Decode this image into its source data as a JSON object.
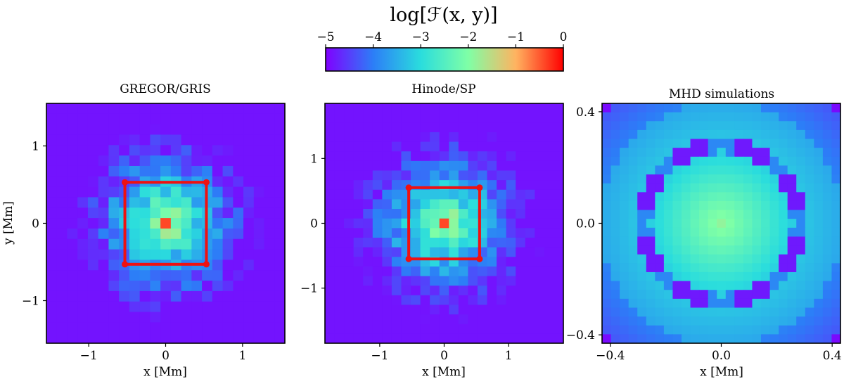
{
  "figure": {
    "colorbar": {
      "label": "log[ℱ(x, y)]",
      "range": [
        -5,
        0
      ],
      "ticks": [
        -5,
        -4,
        -3,
        -2,
        -1,
        0
      ],
      "tick_labels": [
        "−5",
        "−4",
        "−3",
        "−2",
        "−1",
        "0"
      ],
      "colormap": "rainbow",
      "colors": [
        "#8000ff",
        "#2c7ef7",
        "#2adddd",
        "#7fffa6",
        "#ffb360",
        "#ff0000"
      ]
    },
    "box_color": "#ee1111"
  },
  "chart_data": [
    {
      "type": "heatmap",
      "title": "GREGOR/GRIS",
      "xlabel": "x [Mm]",
      "ylabel": "y [Mm]",
      "xlim": [
        -1.55,
        1.55
      ],
      "ylim": [
        -1.55,
        1.55
      ],
      "grid_n": 23,
      "pattern": "noisy-decay",
      "peak_value": -0.4,
      "xticks": [
        -1,
        0,
        1
      ],
      "xtick_labels": [
        "−1",
        "0",
        "1"
      ],
      "yticks": [
        -1,
        0,
        1
      ],
      "ytick_labels": [
        "−1",
        "0",
        "1"
      ],
      "box": {
        "x": [
          -0.53,
          0.53
        ],
        "y": [
          -0.53,
          0.53
        ]
      }
    },
    {
      "type": "heatmap",
      "title": "Hinode/SP",
      "xlabel": "x [Mm]",
      "ylabel": "",
      "xlim": [
        -1.85,
        1.85
      ],
      "ylim": [
        -1.85,
        1.85
      ],
      "grid_n": 25,
      "pattern": "noisy-decay",
      "peak_value": -0.4,
      "xticks": [
        -1,
        0,
        1
      ],
      "xtick_labels": [
        "−1",
        "0",
        "1"
      ],
      "yticks": [
        -1,
        0,
        1
      ],
      "ytick_labels": [
        "−1",
        "0",
        "1"
      ],
      "box": {
        "x": [
          -0.55,
          0.55
        ],
        "y": [
          -0.55,
          0.55
        ]
      }
    },
    {
      "type": "heatmap",
      "title": "MHD simulations",
      "xlabel": "x [Mm]",
      "ylabel": "",
      "xlim": [
        -0.43,
        0.43
      ],
      "ylim": [
        -0.43,
        0.43
      ],
      "grid_n": 27,
      "pattern": "ring",
      "peak_value": -1.85,
      "xticks": [
        -0.4,
        0.0,
        0.4
      ],
      "xtick_labels": [
        "−0.4",
        "0.0",
        "0.4"
      ],
      "yticks": [
        -0.4,
        0.0,
        0.4
      ],
      "ytick_labels": [
        "−0.4",
        "0.0",
        "0.4"
      ],
      "box": null
    }
  ]
}
